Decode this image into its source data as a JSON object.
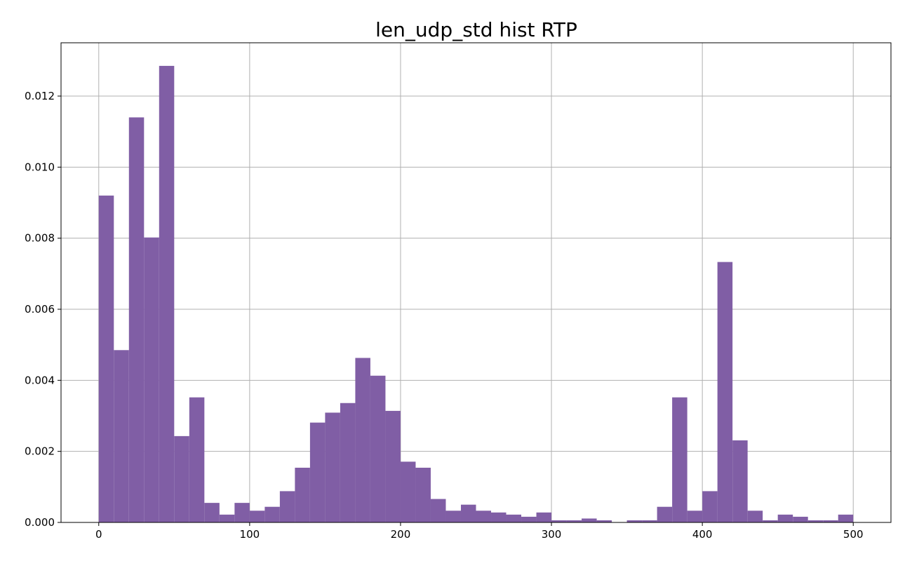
{
  "chart_data": {
    "type": "bar",
    "title": "len_udp_std hist RTP",
    "xlabel": "",
    "ylabel": "",
    "xlim": [
      -25,
      525
    ],
    "ylim": [
      0,
      0.0135
    ],
    "grid": true,
    "bar_color": "#805ea5",
    "bin_width": 10,
    "bin_starts": [
      0,
      10,
      20,
      30,
      40,
      50,
      60,
      70,
      80,
      90,
      100,
      110,
      120,
      130,
      140,
      150,
      160,
      170,
      180,
      190,
      200,
      210,
      220,
      230,
      240,
      250,
      260,
      270,
      280,
      290,
      300,
      310,
      320,
      330,
      340,
      350,
      360,
      370,
      380,
      390,
      400,
      410,
      420,
      430,
      440,
      450,
      460,
      470,
      480,
      490
    ],
    "values": [
      0.0092,
      0.00485,
      0.0114,
      0.00802,
      0.01285,
      0.00243,
      0.00352,
      0.00055,
      0.00022,
      0.00055,
      0.00033,
      0.00044,
      0.00088,
      0.00154,
      0.00281,
      0.00309,
      0.00336,
      0.00463,
      0.00413,
      0.00314,
      0.00171,
      0.00154,
      0.00066,
      0.00033,
      0.0005,
      0.00033,
      0.00028,
      0.00022,
      0.00016,
      0.00028,
      6e-05,
      6e-05,
      0.00011,
      6e-05,
      0.0,
      6e-05,
      6e-05,
      0.00044,
      0.00352,
      0.00033,
      0.00088,
      0.00733,
      0.00231,
      0.00033,
      6e-05,
      0.00022,
      0.00016,
      6e-05,
      6e-05,
      0.00022
    ],
    "x_ticks": [
      0,
      100,
      200,
      300,
      400,
      500
    ],
    "x_tick_labels": [
      "0",
      "100",
      "200",
      "300",
      "400",
      "500"
    ],
    "y_ticks": [
      0.0,
      0.002,
      0.004,
      0.006,
      0.008,
      0.01,
      0.012
    ],
    "y_tick_labels": [
      "0.000",
      "0.002",
      "0.004",
      "0.006",
      "0.008",
      "0.010",
      "0.012"
    ]
  }
}
